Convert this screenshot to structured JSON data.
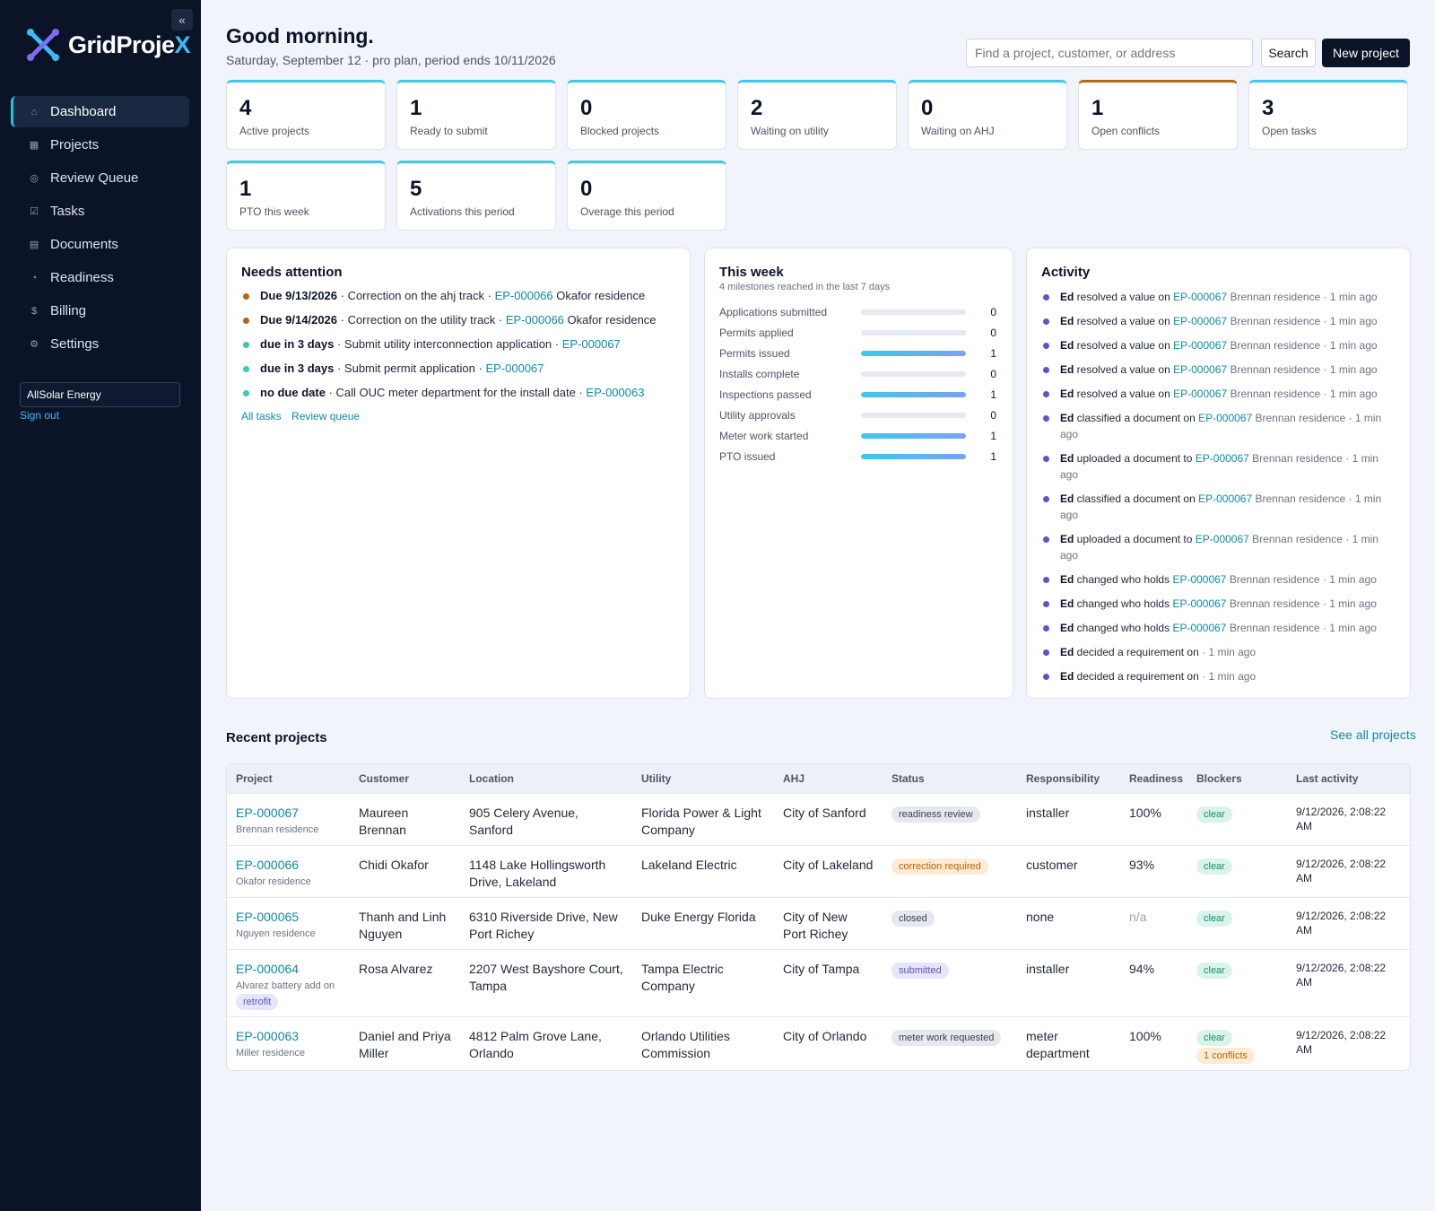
{
  "sidebar": {
    "logo_text_main": "GridProje",
    "logo_text_accent": "X",
    "collapse_label": "«",
    "items": [
      {
        "label": "Dashboard",
        "icon": "⌂",
        "active": true
      },
      {
        "label": "Projects",
        "icon": "▦"
      },
      {
        "label": "Review Queue",
        "icon": "◎"
      },
      {
        "label": "Tasks",
        "icon": "☑"
      },
      {
        "label": "Documents",
        "icon": "▤"
      },
      {
        "label": "Readiness",
        "icon": "◔"
      },
      {
        "label": "Billing",
        "icon": "$"
      },
      {
        "label": "Settings",
        "icon": "⚙"
      }
    ],
    "org": "AllSolar Energy",
    "signout": "Sign out"
  },
  "header": {
    "greeting": "Good morning.",
    "subtitle": "Saturday, September 12 · pro plan, period ends 10/11/2026",
    "search_placeholder": "Find a project, customer, or address",
    "search_label": "Search",
    "new_project_label": "New project"
  },
  "stats": [
    {
      "value": "4",
      "label": "Active projects"
    },
    {
      "value": "1",
      "label": "Ready to submit"
    },
    {
      "value": "0",
      "label": "Blocked projects"
    },
    {
      "value": "2",
      "label": "Waiting on utility"
    },
    {
      "value": "0",
      "label": "Waiting on AHJ"
    },
    {
      "value": "1",
      "label": "Open conflicts",
      "accent": "warn"
    },
    {
      "value": "3",
      "label": "Open tasks"
    },
    {
      "value": "1",
      "label": "PTO this week"
    },
    {
      "value": "5",
      "label": "Activations this period"
    },
    {
      "value": "0",
      "label": "Overage this period"
    }
  ],
  "needs_attention": {
    "title": "Needs attention",
    "items": [
      {
        "due": "Due 9/13/2026",
        "text": " · Correction on the ahj track · ",
        "project": "EP-000066",
        "name": " Okafor residence",
        "color": "brown"
      },
      {
        "due": "Due 9/14/2026",
        "text": " · Correction on the utility track · ",
        "project": "EP-000066",
        "name": " Okafor residence",
        "color": "brown"
      },
      {
        "due": "due in 3 days",
        "text": " · Submit utility interconnection application · ",
        "project": "EP-000067",
        "name": "",
        "color": "teal"
      },
      {
        "due": "due in 3 days",
        "text": " · Submit permit application · ",
        "project": "EP-000067",
        "name": "",
        "color": "teal"
      },
      {
        "due": "no due date",
        "text": " · Call OUC meter department for the install date · ",
        "project": "EP-000063",
        "name": "",
        "color": "teal"
      }
    ],
    "all_tasks": "All tasks",
    "review_queue": "Review queue"
  },
  "this_week": {
    "title": "This week",
    "subtitle": "4 milestones reached in the last 7 days",
    "rows": [
      {
        "label": "Applications submitted",
        "value": 0
      },
      {
        "label": "Permits applied",
        "value": 0
      },
      {
        "label": "Permits issued",
        "value": 1
      },
      {
        "label": "Installs complete",
        "value": 0
      },
      {
        "label": "Inspections passed",
        "value": 1
      },
      {
        "label": "Utility approvals",
        "value": 0
      },
      {
        "label": "Meter work started",
        "value": 1
      },
      {
        "label": "PTO issued",
        "value": 1
      }
    ]
  },
  "activity": {
    "title": "Activity",
    "items": [
      {
        "actor": "Ed",
        "action": " resolved a value on ",
        "project": "EP-000067",
        "name": " Brennan residence",
        "time": " · 1 min ago"
      },
      {
        "actor": "Ed",
        "action": " resolved a value on ",
        "project": "EP-000067",
        "name": " Brennan residence",
        "time": " · 1 min ago"
      },
      {
        "actor": "Ed",
        "action": " resolved a value on ",
        "project": "EP-000067",
        "name": " Brennan residence",
        "time": " · 1 min ago"
      },
      {
        "actor": "Ed",
        "action": " resolved a value on ",
        "project": "EP-000067",
        "name": " Brennan residence",
        "time": " · 1 min ago"
      },
      {
        "actor": "Ed",
        "action": " resolved a value on ",
        "project": "EP-000067",
        "name": " Brennan residence",
        "time": " · 1 min ago"
      },
      {
        "actor": "Ed",
        "action": " classified a document on ",
        "project": "EP-000067",
        "name": " Brennan residence",
        "time": " · 1 min ago"
      },
      {
        "actor": "Ed",
        "action": " uploaded a document to ",
        "project": "EP-000067",
        "name": " Brennan residence",
        "time": " · 1 min ago"
      },
      {
        "actor": "Ed",
        "action": " classified a document on ",
        "project": "EP-000067",
        "name": " Brennan residence",
        "time": " · 1 min ago"
      },
      {
        "actor": "Ed",
        "action": " uploaded a document to ",
        "project": "EP-000067",
        "name": " Brennan residence",
        "time": " · 1 min ago"
      },
      {
        "actor": "Ed",
        "action": " changed who holds ",
        "project": "EP-000067",
        "name": " Brennan residence",
        "time": " · 1 min ago"
      },
      {
        "actor": "Ed",
        "action": " changed who holds ",
        "project": "EP-000067",
        "name": " Brennan residence",
        "time": " · 1 min ago"
      },
      {
        "actor": "Ed",
        "action": " changed who holds ",
        "project": "EP-000067",
        "name": " Brennan residence",
        "time": " · 1 min ago"
      },
      {
        "actor": "Ed",
        "action": " decided a requirement on ",
        "project": "",
        "name": "",
        "time": " · 1 min ago"
      },
      {
        "actor": "Ed",
        "action": " decided a requirement on ",
        "project": "",
        "name": "",
        "time": " · 1 min ago"
      }
    ]
  },
  "recent": {
    "title": "Recent projects",
    "see_all": "See all projects",
    "columns": [
      "Project",
      "Customer",
      "Location",
      "Utility",
      "AHJ",
      "Status",
      "Responsibility",
      "Readiness",
      "Blockers",
      "Last activity"
    ],
    "rows": [
      {
        "id": "EP-000067",
        "sub": "Brennan residence",
        "tag": "",
        "customer": "Maureen Brennan",
        "location": "905 Celery Avenue, Sanford",
        "utility": "Florida Power & Light Company",
        "ahj": "City of Sanford",
        "status": "readiness review",
        "status_color": "gray",
        "responsibility": "installer",
        "readiness": "100%",
        "blockers": [
          "clear"
        ],
        "last": "9/12/2026, 2:08:22 AM"
      },
      {
        "id": "EP-000066",
        "sub": "Okafor residence",
        "tag": "",
        "customer": "Chidi Okafor",
        "location": "1148 Lake Hollingsworth Drive, Lakeland",
        "utility": "Lakeland Electric",
        "ahj": "City of Lakeland",
        "status": "correction required",
        "status_color": "orange",
        "responsibility": "customer",
        "readiness": "93%",
        "blockers": [
          "clear"
        ],
        "last": "9/12/2026, 2:08:22 AM"
      },
      {
        "id": "EP-000065",
        "sub": "Nguyen residence",
        "tag": "",
        "customer": "Thanh and Linh Nguyen",
        "location": "6310 Riverside Drive, New Port Richey",
        "utility": "Duke Energy Florida",
        "ahj": "City of New Port Richey",
        "status": "closed",
        "status_color": "gray",
        "responsibility": "none",
        "readiness": "n/a",
        "blockers": [
          "clear"
        ],
        "last": "9/12/2026, 2:08:22 AM"
      },
      {
        "id": "EP-000064",
        "sub": "Alvarez battery add on",
        "tag": "retrofit",
        "customer": "Rosa Alvarez",
        "location": "2207 West Bayshore Court, Tampa",
        "utility": "Tampa Electric Company",
        "ahj": "City of Tampa",
        "status": "submitted",
        "status_color": "purple",
        "responsibility": "installer",
        "readiness": "94%",
        "blockers": [
          "clear"
        ],
        "last": "9/12/2026, 2:08:22 AM"
      },
      {
        "id": "EP-000063",
        "sub": "Miller residence",
        "tag": "",
        "customer": "Daniel and Priya Miller",
        "location": "4812 Palm Grove Lane, Orlando",
        "utility": "Orlando Utilities Commission",
        "ahj": "City of Orlando",
        "status": "meter work requested",
        "status_color": "gray",
        "responsibility": "meter department",
        "readiness": "100%",
        "blockers": [
          "clear",
          "1 conflicts"
        ],
        "last": "9/12/2026, 2:08:22 AM"
      }
    ]
  }
}
